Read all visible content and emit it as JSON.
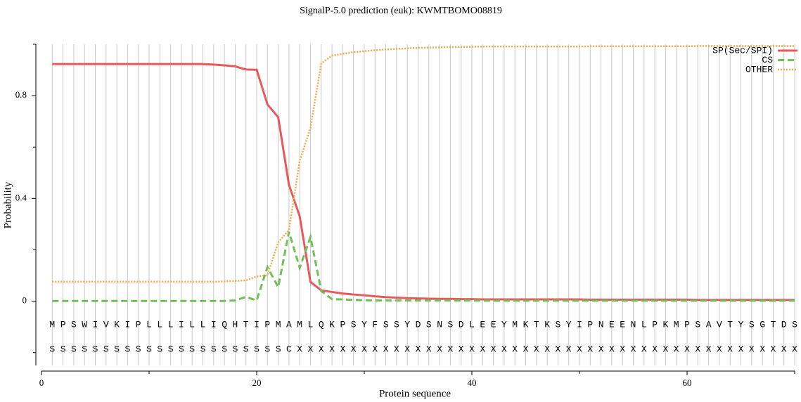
{
  "chart_data": {
    "type": "line",
    "title": "SignalP-5.0 prediction (euk):  KWMTBOMO08819",
    "xlabel": "Protein sequence",
    "ylabel": "Probability",
    "x": [
      1,
      2,
      3,
      4,
      5,
      6,
      7,
      8,
      9,
      10,
      11,
      12,
      13,
      14,
      15,
      16,
      17,
      18,
      19,
      20,
      21,
      22,
      23,
      24,
      25,
      26,
      27,
      28,
      29,
      30,
      31,
      32,
      33,
      34,
      35,
      36,
      37,
      38,
      39,
      40,
      41,
      42,
      43,
      44,
      45,
      46,
      47,
      48,
      49,
      50,
      51,
      52,
      53,
      54,
      55,
      56,
      57,
      58,
      59,
      60,
      61,
      62,
      63,
      64,
      65,
      66,
      67,
      68,
      69,
      70
    ],
    "residues": [
      "M",
      "P",
      "S",
      "W",
      "I",
      "V",
      "K",
      "I",
      "P",
      "L",
      "L",
      "L",
      "I",
      "L",
      "L",
      "I",
      "Q",
      "H",
      "T",
      "I",
      "P",
      "M",
      "A",
      "M",
      "L",
      "Q",
      "K",
      "P",
      "S",
      "Y",
      "F",
      "S",
      "S",
      "Y",
      "D",
      "S",
      "N",
      "S",
      "D",
      "L",
      "E",
      "E",
      "Y",
      "M",
      "K",
      "T",
      "K",
      "S",
      "Y",
      "I",
      "P",
      "N",
      "E",
      "E",
      "N",
      "L",
      "P",
      "K",
      "M",
      "P",
      "S",
      "A",
      "V",
      "T",
      "Y",
      "S",
      "G",
      "T",
      "D",
      "S"
    ],
    "labels": [
      "S",
      "S",
      "S",
      "S",
      "S",
      "S",
      "S",
      "S",
      "S",
      "S",
      "S",
      "S",
      "S",
      "S",
      "S",
      "S",
      "S",
      "S",
      "S",
      "S",
      "S",
      "S",
      "C",
      "X",
      "X",
      "X",
      "X",
      "X",
      "X",
      "X",
      "X",
      "X",
      "X",
      "X",
      "X",
      "X",
      "X",
      "X",
      "X",
      "X",
      "X",
      "X",
      "X",
      "X",
      "X",
      "X",
      "X",
      "X",
      "X",
      "X",
      "X",
      "X",
      "X",
      "X",
      "X",
      "X",
      "X",
      "X",
      "X",
      "X",
      "X",
      "X",
      "X",
      "X",
      "X",
      "X",
      "X",
      "X",
      "X",
      "X"
    ],
    "series": [
      {
        "name": "SP(Sec/SPI)",
        "color": "#e65a5c",
        "style": "solid",
        "values": [
          0.923,
          0.923,
          0.923,
          0.923,
          0.923,
          0.923,
          0.923,
          0.923,
          0.923,
          0.923,
          0.923,
          0.923,
          0.923,
          0.923,
          0.923,
          0.921,
          0.918,
          0.914,
          0.902,
          0.901,
          0.766,
          0.716,
          0.453,
          0.33,
          0.075,
          0.042,
          0.036,
          0.03,
          0.026,
          0.023,
          0.019,
          0.016,
          0.014,
          0.012,
          0.011,
          0.01,
          0.009,
          0.009,
          0.008,
          0.008,
          0.007,
          0.007,
          0.007,
          0.007,
          0.007,
          0.007,
          0.007,
          0.007,
          0.007,
          0.007,
          0.006,
          0.006,
          0.006,
          0.006,
          0.006,
          0.006,
          0.006,
          0.006,
          0.006,
          0.006,
          0.005,
          0.005,
          0.005,
          0.005,
          0.005,
          0.005,
          0.005,
          0.005,
          0.005,
          0.005
        ]
      },
      {
        "name": "CS",
        "color": "#72bf5a",
        "style": "dashed",
        "values": [
          0.001,
          0.001,
          0.001,
          0.001,
          0.001,
          0.001,
          0.001,
          0.001,
          0.001,
          0.001,
          0.001,
          0.001,
          0.001,
          0.001,
          0.001,
          0.001,
          0.001,
          0.003,
          0.017,
          0.003,
          0.133,
          0.055,
          0.27,
          0.13,
          0.25,
          0.04,
          0.008,
          0.007,
          0.005,
          0.004,
          0.003,
          0.003,
          0.003,
          0.003,
          0.003,
          0.003,
          0.003,
          0.003,
          0.003,
          0.003,
          0.002,
          0.002,
          0.002,
          0.002,
          0.002,
          0.002,
          0.002,
          0.002,
          0.002,
          0.002,
          0.002,
          0.002,
          0.002,
          0.002,
          0.002,
          0.002,
          0.002,
          0.002,
          0.002,
          0.002,
          0.002,
          0.002,
          0.002,
          0.002,
          0.002,
          0.002,
          0.002,
          0.002,
          0.002,
          0.002
        ]
      },
      {
        "name": "OTHER",
        "color": "#f5a54a",
        "style": "dotted",
        "values": [
          0.076,
          0.076,
          0.076,
          0.076,
          0.076,
          0.076,
          0.076,
          0.076,
          0.076,
          0.076,
          0.076,
          0.076,
          0.076,
          0.076,
          0.076,
          0.076,
          0.077,
          0.079,
          0.081,
          0.096,
          0.101,
          0.229,
          0.277,
          0.547,
          0.675,
          0.925,
          0.956,
          0.963,
          0.969,
          0.973,
          0.977,
          0.98,
          0.982,
          0.984,
          0.986,
          0.987,
          0.988,
          0.989,
          0.99,
          0.99,
          0.991,
          0.991,
          0.991,
          0.991,
          0.991,
          0.991,
          0.991,
          0.991,
          0.991,
          0.991,
          0.992,
          0.992,
          0.992,
          0.992,
          0.992,
          0.992,
          0.992,
          0.992,
          0.992,
          0.992,
          0.993,
          0.993,
          0.993,
          0.993,
          0.993,
          0.993,
          0.993,
          0.993,
          0.993,
          0.993
        ]
      }
    ],
    "xlim": [
      0,
      70
    ],
    "xticks": [
      0,
      20,
      40,
      60
    ],
    "xminor": [
      10,
      30,
      50,
      70
    ],
    "ylim": [
      -0.25,
      1.0
    ],
    "yticks": [
      0,
      0.4,
      0.8
    ],
    "yminor": [
      -0.2,
      0.2,
      0.6,
      1.0
    ],
    "grid": true,
    "legend": "upper right"
  }
}
